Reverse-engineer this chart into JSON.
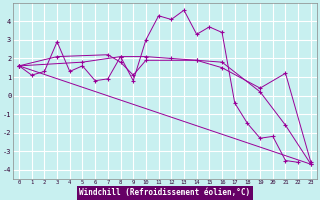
{
  "xlabel": "Windchill (Refroidissement éolien,°C)",
  "background_color": "#c8f0f0",
  "line_color": "#990099",
  "grid_color": "#ffffff",
  "xlim": [
    -0.5,
    23.5
  ],
  "ylim": [
    -4.5,
    5.0
  ],
  "yticks": [
    -4,
    -3,
    -2,
    -1,
    0,
    1,
    2,
    3,
    4
  ],
  "xticks": [
    0,
    1,
    2,
    3,
    4,
    5,
    6,
    7,
    8,
    9,
    10,
    11,
    12,
    13,
    14,
    15,
    16,
    17,
    18,
    19,
    20,
    21,
    22,
    23
  ],
  "series": [
    {
      "x": [
        0,
        1,
        2,
        3,
        4,
        5,
        6,
        7,
        8,
        9,
        10,
        11,
        12,
        13,
        14,
        15,
        16,
        17,
        18,
        19,
        20,
        21,
        22
      ],
      "y": [
        1.6,
        1.1,
        1.3,
        2.9,
        1.3,
        1.6,
        0.8,
        0.9,
        2.1,
        0.8,
        3.0,
        4.3,
        4.1,
        4.6,
        3.3,
        3.7,
        3.4,
        -0.4,
        -1.5,
        -2.3,
        -2.2,
        -3.5,
        -3.6
      ]
    },
    {
      "x": [
        0,
        23
      ],
      "y": [
        1.6,
        -3.7
      ]
    },
    {
      "x": [
        0,
        3,
        7,
        8,
        9,
        10,
        14,
        16,
        19,
        21,
        23
      ],
      "y": [
        1.6,
        2.1,
        2.2,
        1.8,
        1.1,
        1.9,
        1.9,
        1.5,
        0.4,
        1.2,
        -3.6
      ]
    },
    {
      "x": [
        0,
        5,
        8,
        10,
        12,
        14,
        16,
        19,
        21,
        23
      ],
      "y": [
        1.6,
        1.8,
        2.1,
        2.1,
        2.0,
        1.9,
        1.8,
        0.2,
        -1.6,
        -3.7
      ]
    }
  ]
}
